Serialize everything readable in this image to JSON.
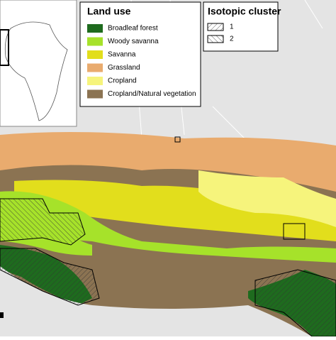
{
  "legend_land_use": {
    "title": "Land use",
    "items": [
      {
        "label": "Broadleaf forest",
        "color": "#1e6b1e"
      },
      {
        "label": "Woody savanna",
        "color": "#a6e22a"
      },
      {
        "label": "Savanna",
        "color": "#e2de1c"
      },
      {
        "label": "Grassland",
        "color": "#e9ab6e"
      },
      {
        "label": "Cropland",
        "color": "#f6f47c"
      },
      {
        "label": "Cropland/Natural vegetation",
        "color": "#8b7352"
      }
    ]
  },
  "legend_cluster": {
    "title": "Isotopic cluster",
    "items": [
      {
        "label": "1"
      },
      {
        "label": "2"
      }
    ]
  }
}
